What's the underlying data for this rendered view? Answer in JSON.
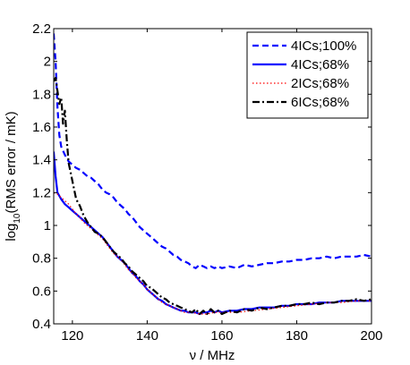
{
  "chart_data": {
    "type": "line",
    "title": "",
    "xlabel": "ν / MHz",
    "ylabel": {
      "prefix": "log",
      "sub": "10",
      "suffix": "(RMS error / mK)"
    },
    "xlim": [
      115,
      200
    ],
    "ylim": [
      0.4,
      2.2
    ],
    "xticks": [
      120,
      140,
      160,
      180,
      200
    ],
    "yticks": [
      0.4,
      0.6,
      0.8,
      1,
      1.2,
      1.4,
      1.6,
      1.8,
      2,
      2.2
    ],
    "ytick_labels": [
      "0.4",
      "0.6",
      "0.8",
      "1",
      "1.2",
      "1.4",
      "1.6",
      "1.8",
      "2",
      "2.2"
    ],
    "grid": false,
    "legend": "top-right",
    "series": [
      {
        "name": "4ICs;100%",
        "color": "#0000ff",
        "dash": "dashed",
        "x": [
          115,
          115.5,
          116,
          116.5,
          117,
          118,
          119,
          120,
          121,
          122,
          123,
          124,
          125,
          126,
          127,
          128,
          129,
          130,
          131,
          132,
          133,
          134,
          135,
          136,
          137,
          138,
          139,
          140,
          141,
          142,
          143,
          144,
          145,
          146,
          147,
          148,
          149,
          150,
          151,
          152,
          153,
          154,
          155,
          156,
          157,
          158,
          159,
          160,
          162,
          164,
          166,
          168,
          170,
          172,
          174,
          176,
          178,
          180,
          182,
          184,
          186,
          188,
          190,
          192,
          194,
          196,
          198,
          200
        ],
        "y": [
          2.17,
          2.0,
          1.72,
          1.55,
          1.48,
          1.43,
          1.39,
          1.37,
          1.35,
          1.34,
          1.32,
          1.3,
          1.29,
          1.27,
          1.25,
          1.22,
          1.2,
          1.19,
          1.17,
          1.14,
          1.12,
          1.1,
          1.07,
          1.05,
          1.02,
          0.99,
          0.97,
          0.95,
          0.93,
          0.91,
          0.89,
          0.87,
          0.86,
          0.84,
          0.82,
          0.81,
          0.79,
          0.78,
          0.77,
          0.75,
          0.74,
          0.76,
          0.75,
          0.74,
          0.75,
          0.74,
          0.75,
          0.74,
          0.75,
          0.74,
          0.76,
          0.75,
          0.76,
          0.77,
          0.77,
          0.78,
          0.78,
          0.79,
          0.79,
          0.8,
          0.8,
          0.81,
          0.8,
          0.81,
          0.81,
          0.81,
          0.82,
          0.81
        ]
      },
      {
        "name": "4ICs;68%",
        "color": "#0000ff",
        "dash": "solid",
        "x": [
          115,
          115.5,
          116,
          116.5,
          117,
          118,
          119,
          120,
          121,
          122,
          123,
          124,
          125,
          126,
          127,
          128,
          129,
          130,
          131,
          132,
          133,
          134,
          135,
          136,
          137,
          138,
          139,
          140,
          141,
          142,
          143,
          144,
          145,
          146,
          147,
          148,
          149,
          150,
          151,
          152,
          153,
          154,
          155,
          156,
          157,
          158,
          159,
          160,
          162,
          164,
          166,
          168,
          170,
          172,
          174,
          176,
          178,
          180,
          182,
          184,
          186,
          188,
          190,
          192,
          194,
          196,
          198,
          200
        ],
        "y": [
          1.45,
          1.3,
          1.2,
          1.18,
          1.16,
          1.13,
          1.11,
          1.09,
          1.07,
          1.05,
          1.03,
          1.01,
          0.99,
          0.97,
          0.95,
          0.93,
          0.9,
          0.87,
          0.84,
          0.81,
          0.79,
          0.77,
          0.74,
          0.71,
          0.69,
          0.66,
          0.64,
          0.61,
          0.59,
          0.57,
          0.55,
          0.54,
          0.52,
          0.51,
          0.5,
          0.49,
          0.48,
          0.48,
          0.47,
          0.47,
          0.47,
          0.46,
          0.47,
          0.47,
          0.48,
          0.47,
          0.48,
          0.47,
          0.48,
          0.48,
          0.49,
          0.49,
          0.5,
          0.5,
          0.5,
          0.51,
          0.51,
          0.52,
          0.52,
          0.52,
          0.53,
          0.53,
          0.53,
          0.54,
          0.54,
          0.54,
          0.54,
          0.54
        ]
      },
      {
        "name": "2ICs;68%",
        "color": "#ff0000",
        "dash": "dotted",
        "x": [
          115,
          116,
          117,
          118,
          119,
          120,
          121,
          122,
          123,
          124,
          125,
          126,
          127,
          128,
          129,
          130,
          131,
          132,
          133,
          134,
          135,
          136,
          137,
          138,
          139,
          140,
          141,
          142,
          143,
          144,
          145,
          146,
          147,
          148,
          149,
          150,
          152,
          154,
          156,
          158,
          160,
          164,
          168,
          172,
          176,
          180,
          184,
          188,
          192,
          196,
          200
        ],
        "y": [
          1.2,
          1.19,
          1.17,
          1.15,
          1.13,
          1.1,
          1.07,
          1.05,
          1.02,
          1.0,
          0.98,
          0.96,
          0.94,
          0.92,
          0.89,
          0.86,
          0.83,
          0.81,
          0.79,
          0.76,
          0.73,
          0.71,
          0.68,
          0.66,
          0.64,
          0.61,
          0.59,
          0.57,
          0.55,
          0.53,
          0.52,
          0.51,
          0.5,
          0.49,
          0.48,
          0.47,
          0.47,
          0.46,
          0.46,
          0.47,
          0.47,
          0.47,
          0.48,
          0.49,
          0.5,
          0.51,
          0.52,
          0.53,
          0.53,
          0.54,
          0.54
        ]
      },
      {
        "name": "6ICs;68%",
        "color": "#000000",
        "dash": "dashdot",
        "x": [
          115,
          115.5,
          116,
          116.5,
          117,
          117.5,
          118,
          118.5,
          119,
          120,
          121,
          122,
          123,
          124,
          125,
          126,
          127,
          128,
          129,
          130,
          131,
          132,
          133,
          134,
          135,
          136,
          137,
          138,
          139,
          140,
          141,
          142,
          143,
          144,
          145,
          146,
          147,
          148,
          149,
          150,
          151,
          152,
          153,
          154,
          155,
          156,
          157,
          158,
          159,
          160,
          162,
          164,
          166,
          168,
          170,
          172,
          174,
          176,
          178,
          180,
          182,
          184,
          186,
          188,
          190,
          192,
          194,
          196,
          198,
          200
        ],
        "y": [
          1.88,
          1.9,
          1.82,
          1.74,
          1.78,
          1.62,
          1.7,
          1.52,
          1.38,
          1.27,
          1.16,
          1.12,
          1.06,
          1.02,
          0.99,
          0.96,
          0.95,
          0.93,
          0.9,
          0.87,
          0.84,
          0.82,
          0.8,
          0.77,
          0.75,
          0.72,
          0.7,
          0.68,
          0.66,
          0.63,
          0.62,
          0.6,
          0.58,
          0.56,
          0.55,
          0.53,
          0.52,
          0.51,
          0.5,
          0.49,
          0.48,
          0.47,
          0.49,
          0.46,
          0.48,
          0.46,
          0.49,
          0.47,
          0.48,
          0.46,
          0.48,
          0.47,
          0.49,
          0.48,
          0.5,
          0.49,
          0.5,
          0.51,
          0.51,
          0.52,
          0.52,
          0.53,
          0.52,
          0.53,
          0.53,
          0.54,
          0.54,
          0.55,
          0.54,
          0.55
        ]
      }
    ]
  }
}
